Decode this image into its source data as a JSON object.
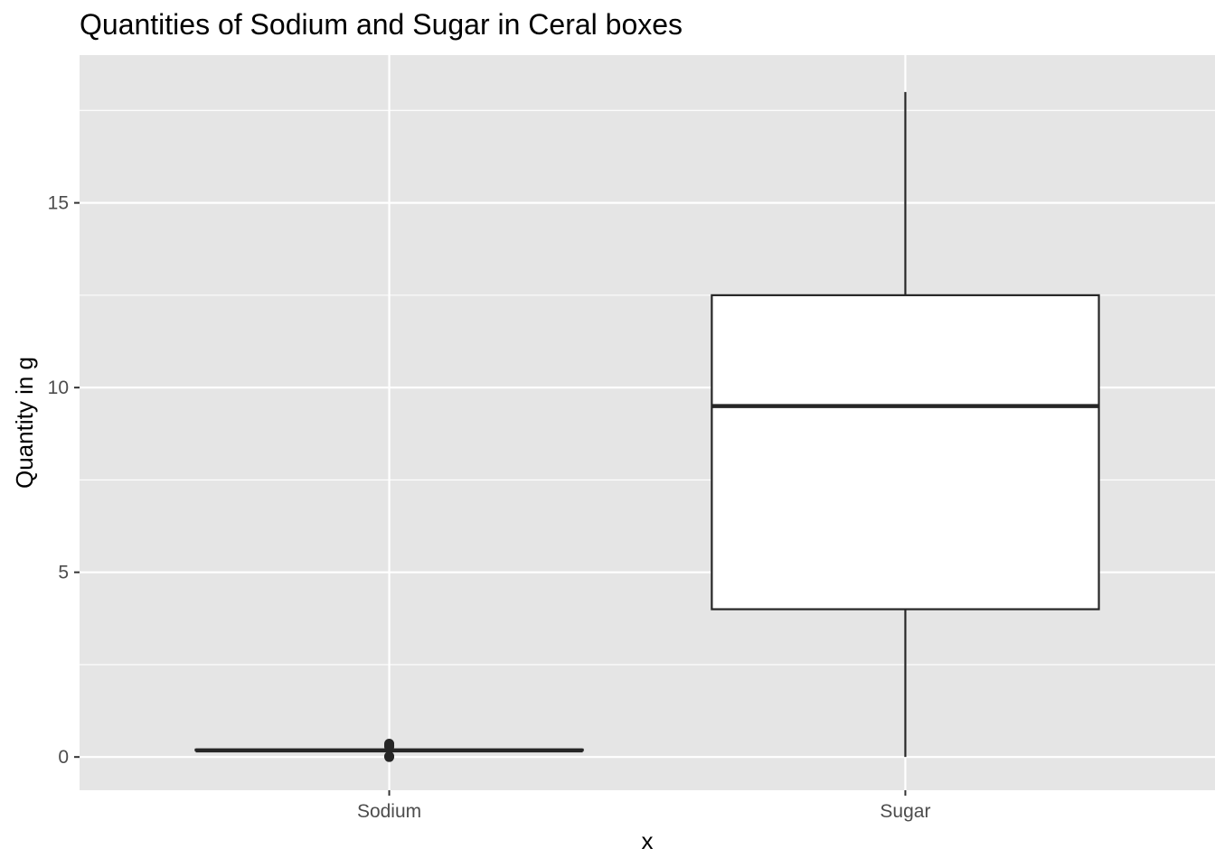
{
  "chart_data": {
    "type": "boxplot",
    "title": "Quantities of Sodium and Sugar in Ceral boxes",
    "xlabel": "x",
    "ylabel": "Quantity in g",
    "ylim": [
      -0.9,
      19.0
    ],
    "y_ticks": [
      0,
      5,
      10,
      15
    ],
    "y_minor_ticks": [
      2.5,
      7.5,
      12.5,
      17.5
    ],
    "grid": true,
    "colors": {
      "panel": "#e5e5e5",
      "grid": "#ffffff",
      "box_fill": "#ffffff",
      "box_line": "#262626",
      "axis_text": "#4d4d4d"
    },
    "categories": [
      "Sodium",
      "Sugar"
    ],
    "boxes": [
      {
        "name": "Sodium",
        "whisker_low": 0.18,
        "q1": 0.18,
        "median": 0.18,
        "q3": 0.2,
        "whisker_high": 0.2,
        "outliers": [
          0.0,
          0.02,
          0.28,
          0.32,
          0.36
        ]
      },
      {
        "name": "Sugar",
        "whisker_low": 0,
        "q1": 4,
        "median": 9.5,
        "q3": 12.5,
        "whisker_high": 18,
        "outliers": []
      }
    ]
  }
}
